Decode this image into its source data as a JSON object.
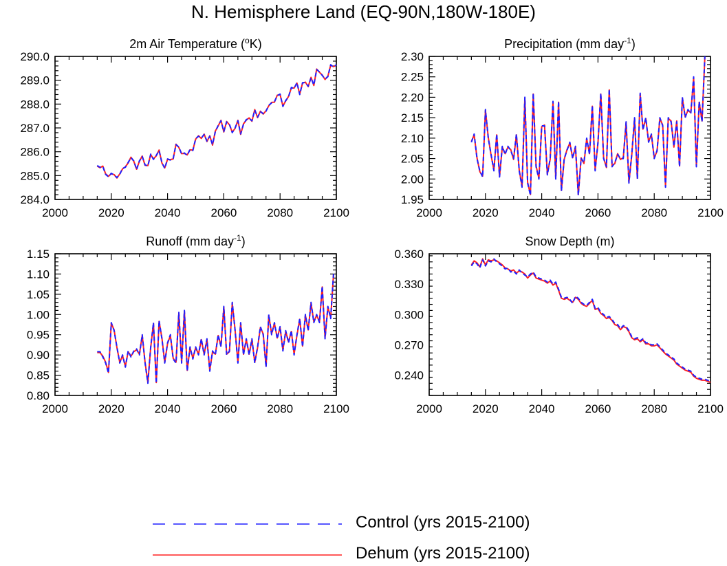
{
  "page_title": "N. Hemisphere Land (EQ-90N,180W-180E)",
  "colors": {
    "control": "#1f1fff",
    "dehum": "#ff2020"
  },
  "legend": [
    {
      "label": "Control (yrs 2015-2100)",
      "style": "dashed",
      "color": "#1f1fff"
    },
    {
      "label": "Dehum (yrs 2015-2100)",
      "style": "solid",
      "color": "#ff2020"
    }
  ],
  "chart_data": [
    {
      "type": "line",
      "title": "2m Air Temperature",
      "title_super": "o",
      "title_unit": "K",
      "title_format": "degK",
      "xlim": [
        2000,
        2100
      ],
      "ylim": [
        284.0,
        290.0
      ],
      "xticks": [
        2000,
        2020,
        2040,
        2060,
        2080,
        2100
      ],
      "yticks": [
        284.0,
        285.0,
        286.0,
        287.0,
        288.0,
        289.0,
        290.0
      ],
      "ytick_labels": [
        "284.0",
        "285.0",
        "286.0",
        "287.0",
        "288.0",
        "289.0",
        "290.0"
      ],
      "xtick_labels": [
        "2000",
        "2020",
        "2040",
        "2060",
        "2080",
        "2100"
      ],
      "x_start": 2015,
      "series": [
        {
          "name": "Control",
          "color": "#1f1fff",
          "dash": true,
          "values": [
            285.42,
            285.35,
            285.38,
            285.05,
            284.95,
            285.1,
            285.02,
            284.92,
            285.05,
            285.3,
            285.35,
            285.55,
            285.75,
            285.62,
            285.25,
            285.62,
            285.8,
            285.45,
            285.4,
            285.9,
            285.68,
            285.85,
            286.05,
            285.55,
            285.3,
            285.7,
            285.65,
            285.72,
            286.3,
            286.2,
            285.9,
            285.95,
            285.85,
            286.1,
            286.05,
            286.55,
            286.65,
            286.58,
            286.72,
            286.45,
            286.65,
            286.3,
            286.85,
            287.1,
            287.3,
            286.85,
            287.25,
            287.15,
            286.8,
            287.0,
            287.3,
            286.75,
            287.15,
            287.35,
            287.4,
            287.3,
            287.75,
            287.45,
            287.68,
            287.6,
            287.7,
            287.95,
            288.05,
            288.1,
            288.35,
            288.42,
            287.9,
            288.15,
            288.3,
            288.7,
            288.65,
            288.9,
            288.4,
            288.9,
            288.9,
            288.75,
            289.1,
            288.8,
            289.45,
            289.35,
            289.2,
            289.05,
            289.15,
            289.65,
            289.55,
            289.65
          ]
        },
        {
          "name": "Dehum",
          "color": "#ff2020",
          "dash": false,
          "values": [
            285.4,
            285.33,
            285.4,
            285.07,
            284.97,
            285.08,
            285.04,
            284.9,
            285.07,
            285.28,
            285.37,
            285.53,
            285.77,
            285.6,
            285.27,
            285.6,
            285.82,
            285.43,
            285.42,
            285.88,
            285.7,
            285.83,
            286.07,
            285.53,
            285.32,
            285.68,
            285.67,
            285.7,
            286.32,
            286.18,
            285.92,
            285.93,
            285.87,
            286.08,
            286.07,
            286.53,
            286.67,
            286.56,
            286.74,
            286.43,
            286.67,
            286.28,
            286.87,
            287.08,
            287.32,
            286.83,
            287.27,
            287.13,
            286.82,
            286.98,
            287.32,
            286.73,
            287.17,
            287.33,
            287.42,
            287.28,
            287.77,
            287.43,
            287.7,
            287.58,
            287.72,
            287.93,
            288.07,
            288.08,
            288.37,
            288.4,
            287.92,
            288.13,
            288.32,
            288.68,
            288.67,
            288.88,
            288.42,
            288.88,
            288.92,
            288.73,
            289.12,
            288.78,
            289.47,
            289.33,
            289.22,
            289.03,
            289.17,
            289.63,
            289.57,
            289.63
          ]
        }
      ]
    },
    {
      "type": "line",
      "title": "Precipitation (mm day",
      "title_super": "-1",
      "title_unit": "",
      "title_format": "perday",
      "xlim": [
        2000,
        2100
      ],
      "ylim": [
        1.95,
        2.3
      ],
      "xticks": [
        2000,
        2020,
        2040,
        2060,
        2080,
        2100
      ],
      "yticks": [
        1.95,
        2.0,
        2.05,
        2.1,
        2.15,
        2.2,
        2.25,
        2.3
      ],
      "ytick_labels": [
        "1.95",
        "2.00",
        "2.05",
        "2.10",
        "2.15",
        "2.20",
        "2.25",
        "2.30"
      ],
      "xtick_labels": [
        "2000",
        "2020",
        "2040",
        "2060",
        "2080",
        "2100"
      ],
      "x_start": 2015,
      "series": [
        {
          "name": "Control",
          "color": "#1f1fff",
          "dash": true,
          "values": [
            2.09,
            2.11,
            2.05,
            2.02,
            2.005,
            2.17,
            2.1,
            2.06,
            2.02,
            2.11,
            2.005,
            2.08,
            2.06,
            2.08,
            2.07,
            2.05,
            2.11,
            2.02,
            1.98,
            2.2,
            1.99,
            1.96,
            2.21,
            2.03,
            2.0,
            2.13,
            2.13,
            2.01,
            2.05,
            2.19,
            2.0,
            2.19,
            1.97,
            2.05,
            2.07,
            2.09,
            2.05,
            2.08,
            1.96,
            2.05,
            2.04,
            2.1,
            2.06,
            2.18,
            2.02,
            2.09,
            2.21,
            2.05,
            2.03,
            2.22,
            2.03,
            2.04,
            2.06,
            2.05,
            2.05,
            2.14,
            1.99,
            2.06,
            2.15,
            2.0,
            2.21,
            2.12,
            2.15,
            2.09,
            2.11,
            2.05,
            2.07,
            2.15,
            2.13,
            1.98,
            2.15,
            2.14,
            2.08,
            2.14,
            2.03,
            2.2,
            2.15,
            2.17,
            2.16,
            2.25,
            2.03,
            2.19,
            2.14,
            2.3
          ]
        },
        {
          "name": "Dehum",
          "color": "#ff2020",
          "dash": false,
          "values": [
            2.092,
            2.108,
            2.052,
            2.018,
            2.007,
            2.168,
            2.102,
            2.058,
            2.022,
            2.108,
            2.007,
            2.078,
            2.062,
            2.078,
            2.072,
            2.048,
            2.108,
            2.022,
            1.982,
            2.198,
            1.992,
            1.962,
            2.208,
            2.032,
            2.002,
            2.128,
            2.132,
            2.012,
            2.048,
            2.188,
            2.002,
            2.188,
            1.972,
            2.048,
            2.072,
            2.088,
            2.052,
            2.078,
            1.962,
            2.052,
            2.038,
            2.098,
            2.062,
            2.178,
            2.022,
            2.088,
            2.208,
            2.052,
            2.028,
            2.218,
            2.032,
            2.038,
            2.062,
            2.048,
            2.052,
            2.138,
            1.992,
            2.058,
            2.148,
            2.002,
            2.208,
            2.122,
            2.148,
            2.092,
            2.108,
            2.052,
            2.068,
            2.148,
            2.132,
            1.982,
            2.148,
            2.142,
            2.078,
            2.142,
            2.032,
            2.198,
            2.152,
            2.168,
            2.162,
            2.248,
            2.032,
            2.188,
            2.142,
            2.298
          ]
        }
      ]
    },
    {
      "type": "line",
      "title": "Runoff (mm day",
      "title_super": "-1",
      "title_unit": "",
      "title_format": "perday",
      "xlim": [
        2000,
        2100
      ],
      "ylim": [
        0.8,
        1.15
      ],
      "xticks": [
        2000,
        2020,
        2040,
        2060,
        2080,
        2100
      ],
      "yticks": [
        0.8,
        0.85,
        0.9,
        0.95,
        1.0,
        1.05,
        1.1,
        1.15
      ],
      "ytick_labels": [
        "0.80",
        "0.85",
        "0.90",
        "0.95",
        "1.00",
        "1.05",
        "1.10",
        "1.15"
      ],
      "xtick_labels": [
        "2000",
        "2020",
        "2040",
        "2060",
        "2080",
        "2100"
      ],
      "x_start": 2015,
      "series": [
        {
          "name": "Control",
          "color": "#1f1fff",
          "dash": true,
          "values": [
            0.908,
            0.908,
            0.895,
            0.88,
            0.855,
            0.98,
            0.96,
            0.92,
            0.88,
            0.9,
            0.87,
            0.91,
            0.895,
            0.91,
            0.915,
            0.9,
            0.95,
            0.88,
            0.83,
            0.92,
            0.98,
            0.83,
            0.985,
            0.94,
            0.88,
            0.93,
            0.95,
            0.89,
            0.88,
            1.005,
            0.88,
            1.01,
            0.86,
            0.92,
            0.89,
            0.92,
            0.9,
            0.94,
            0.9,
            0.94,
            0.86,
            0.91,
            0.9,
            0.95,
            0.92,
            1.02,
            0.9,
            0.91,
            1.03,
            0.96,
            0.88,
            0.98,
            0.9,
            0.94,
            0.9,
            0.94,
            0.88,
            0.92,
            0.97,
            0.95,
            0.87,
            1.0,
            0.95,
            0.98,
            0.94,
            0.97,
            0.91,
            0.96,
            0.93,
            0.96,
            0.9,
            0.95,
            0.99,
            0.92,
            1.0,
            0.96,
            1.03,
            0.98,
            1.0,
            0.98,
            1.07,
            0.94,
            1.02,
            0.99,
            1.1
          ]
        },
        {
          "name": "Dehum",
          "color": "#ff2020",
          "dash": false,
          "values": [
            0.906,
            0.906,
            0.897,
            0.882,
            0.857,
            0.978,
            0.962,
            0.918,
            0.882,
            0.898,
            0.872,
            0.908,
            0.897,
            0.908,
            0.913,
            0.902,
            0.948,
            0.882,
            0.832,
            0.918,
            0.978,
            0.832,
            0.983,
            0.942,
            0.882,
            0.928,
            0.948,
            0.892,
            0.882,
            1.003,
            0.882,
            1.008,
            0.862,
            0.918,
            0.892,
            0.918,
            0.902,
            0.938,
            0.902,
            0.938,
            0.862,
            0.908,
            0.902,
            0.948,
            0.922,
            1.018,
            0.902,
            0.908,
            1.028,
            0.962,
            0.882,
            0.978,
            0.902,
            0.938,
            0.902,
            0.938,
            0.882,
            0.918,
            0.968,
            0.952,
            0.872,
            0.998,
            0.952,
            0.978,
            0.942,
            0.968,
            0.912,
            0.958,
            0.932,
            0.958,
            0.902,
            0.948,
            0.988,
            0.922,
            0.998,
            0.962,
            1.028,
            0.982,
            0.998,
            0.982,
            1.068,
            0.942,
            1.018,
            0.992,
            1.098
          ]
        }
      ]
    },
    {
      "type": "line",
      "title": "Snow Depth (m)",
      "title_super": "",
      "title_unit": "",
      "title_format": "plain",
      "xlim": [
        2000,
        2100
      ],
      "ylim": [
        0.22,
        0.36
      ],
      "xticks": [
        2000,
        2020,
        2040,
        2060,
        2080,
        2100
      ],
      "yticks": [
        0.24,
        0.27,
        0.3,
        0.33,
        0.36
      ],
      "ytick_labels": [
        "0.240",
        "0.270",
        "0.300",
        "0.330",
        "0.360"
      ],
      "xtick_labels": [
        "2000",
        "2020",
        "2040",
        "2060",
        "2080",
        "2100"
      ],
      "x_start": 2015,
      "series": [
        {
          "name": "Control",
          "color": "#1f1fff",
          "dash": true,
          "values": [
            0.348,
            0.352,
            0.35,
            0.346,
            0.354,
            0.348,
            0.353,
            0.352,
            0.355,
            0.352,
            0.35,
            0.348,
            0.345,
            0.346,
            0.342,
            0.343,
            0.34,
            0.344,
            0.341,
            0.339,
            0.337,
            0.34,
            0.342,
            0.337,
            0.336,
            0.335,
            0.334,
            0.332,
            0.334,
            0.33,
            0.332,
            0.325,
            0.317,
            0.316,
            0.317,
            0.315,
            0.311,
            0.318,
            0.316,
            0.312,
            0.31,
            0.309,
            0.312,
            0.315,
            0.306,
            0.307,
            0.302,
            0.3,
            0.297,
            0.298,
            0.295,
            0.291,
            0.29,
            0.286,
            0.289,
            0.288,
            0.284,
            0.278,
            0.276,
            0.277,
            0.274,
            0.276,
            0.272,
            0.272,
            0.27,
            0.27,
            0.271,
            0.268,
            0.265,
            0.262,
            0.26,
            0.258,
            0.256,
            0.252,
            0.25,
            0.248,
            0.246,
            0.245,
            0.244,
            0.24,
            0.238,
            0.237,
            0.236,
            0.236,
            0.235,
            0.234
          ]
        },
        {
          "name": "Dehum",
          "color": "#ff2020",
          "dash": false,
          "values": [
            0.349,
            0.353,
            0.351,
            0.347,
            0.355,
            0.349,
            0.354,
            0.353,
            0.354,
            0.353,
            0.351,
            0.349,
            0.346,
            0.345,
            0.343,
            0.344,
            0.341,
            0.343,
            0.342,
            0.34,
            0.336,
            0.339,
            0.341,
            0.336,
            0.335,
            0.334,
            0.333,
            0.331,
            0.333,
            0.329,
            0.331,
            0.324,
            0.316,
            0.315,
            0.316,
            0.314,
            0.312,
            0.317,
            0.315,
            0.311,
            0.309,
            0.308,
            0.311,
            0.314,
            0.305,
            0.306,
            0.301,
            0.299,
            0.296,
            0.297,
            0.294,
            0.29,
            0.289,
            0.285,
            0.288,
            0.287,
            0.283,
            0.277,
            0.275,
            0.276,
            0.273,
            0.275,
            0.271,
            0.271,
            0.269,
            0.269,
            0.27,
            0.267,
            0.264,
            0.261,
            0.259,
            0.257,
            0.255,
            0.251,
            0.249,
            0.247,
            0.245,
            0.244,
            0.243,
            0.239,
            0.237,
            0.236,
            0.235,
            0.235,
            0.234,
            0.233
          ]
        }
      ]
    }
  ]
}
